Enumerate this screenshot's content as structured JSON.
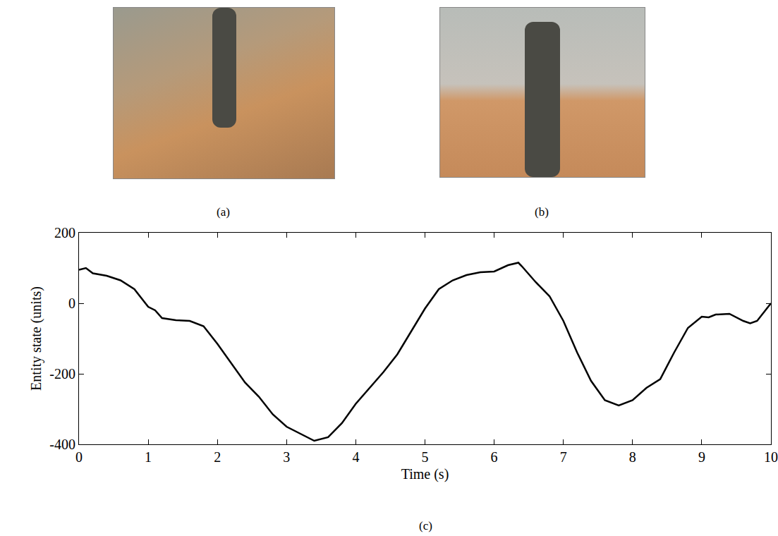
{
  "panel_labels": [
    "(a)",
    "(b)",
    "(c)"
  ],
  "chart_data": {
    "type": "line",
    "x_label": "Time (s)",
    "y_label": "Entity state (units)",
    "color": "#000000",
    "grid": false,
    "xlim": [
      0,
      10
    ],
    "ylim": [
      -400,
      200
    ],
    "xticks": [
      0,
      1,
      2,
      3,
      4,
      5,
      6,
      7,
      8,
      9,
      10
    ],
    "yticks": [
      -400,
      -200,
      0,
      200
    ],
    "x": [
      0,
      0.1,
      0.2,
      0.4,
      0.6,
      0.8,
      1.0,
      1.1,
      1.2,
      1.4,
      1.6,
      1.8,
      2.0,
      2.2,
      2.4,
      2.6,
      2.8,
      3.0,
      3.2,
      3.4,
      3.6,
      3.8,
      4.0,
      4.2,
      4.4,
      4.6,
      4.8,
      5.0,
      5.2,
      5.4,
      5.6,
      5.8,
      6.0,
      6.2,
      6.35,
      6.4,
      6.6,
      6.8,
      7.0,
      7.2,
      7.4,
      7.6,
      7.8,
      8.0,
      8.2,
      8.4,
      8.6,
      8.8,
      9.0,
      9.1,
      9.2,
      9.4,
      9.6,
      9.7,
      9.8,
      10.0
    ],
    "values": [
      95,
      100,
      85,
      78,
      65,
      40,
      -10,
      -20,
      -42,
      -48,
      -50,
      -65,
      -115,
      -170,
      -225,
      -265,
      -315,
      -350,
      -370,
      -390,
      -380,
      -340,
      -285,
      -240,
      -195,
      -145,
      -80,
      -15,
      40,
      65,
      80,
      88,
      90,
      108,
      115,
      105,
      60,
      20,
      -50,
      -140,
      -220,
      -275,
      -290,
      -275,
      -240,
      -215,
      -140,
      -70,
      -38,
      -40,
      -32,
      -30,
      -50,
      -57,
      -50,
      0
    ]
  }
}
